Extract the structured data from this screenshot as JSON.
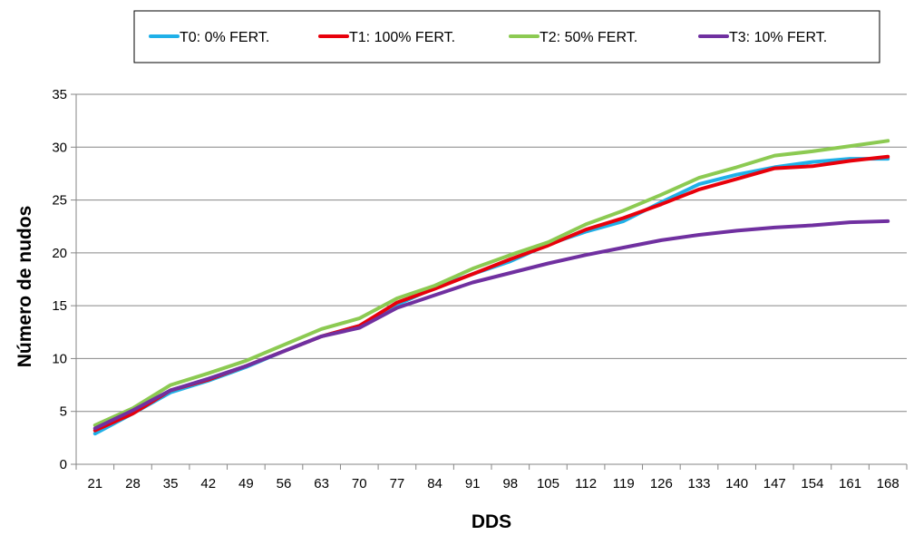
{
  "chart_data": {
    "type": "line",
    "title": "",
    "xlabel": "DDS",
    "ylabel": "Número de nudos",
    "ylim": [
      0,
      35
    ],
    "yticks": [
      0,
      5,
      10,
      15,
      20,
      25,
      30,
      35
    ],
    "grid": "horizontal",
    "legend": "top",
    "x": [
      21,
      28,
      35,
      42,
      49,
      56,
      63,
      70,
      77,
      84,
      91,
      98,
      105,
      112,
      119,
      126,
      133,
      140,
      147,
      154,
      161,
      168
    ],
    "series": [
      {
        "name": "T0: 0% FERT.",
        "color": "#1FB0E8",
        "values": [
          2.9,
          4.8,
          6.8,
          7.9,
          9.2,
          10.7,
          12.1,
          13.1,
          15.1,
          16.7,
          18.0,
          19.2,
          20.8,
          22.0,
          23.0,
          24.8,
          26.5,
          27.4,
          28.1,
          28.6,
          28.9,
          28.9
        ]
      },
      {
        "name": "T1: 100% FERT.",
        "color": "#E8000B",
        "values": [
          3.2,
          4.8,
          7.0,
          8.0,
          9.3,
          10.7,
          12.1,
          13.1,
          15.3,
          16.6,
          18.0,
          19.4,
          20.7,
          22.2,
          23.3,
          24.6,
          26.0,
          27.0,
          28.0,
          28.2,
          28.7,
          29.1
        ]
      },
      {
        "name": "T2: 50% FERT.",
        "color": "#8CCA52",
        "values": [
          3.7,
          5.3,
          7.5,
          8.6,
          9.8,
          11.3,
          12.8,
          13.8,
          15.7,
          16.9,
          18.5,
          19.8,
          21.0,
          22.7,
          24.0,
          25.5,
          27.1,
          28.1,
          29.2,
          29.6,
          30.1,
          30.6
        ]
      },
      {
        "name": "T3: 10% FERT.",
        "color": "#7030A0",
        "values": [
          3.4,
          5.1,
          7.0,
          8.1,
          9.3,
          10.7,
          12.1,
          12.9,
          14.8,
          16.0,
          17.2,
          18.1,
          19.0,
          19.8,
          20.5,
          21.2,
          21.7,
          22.1,
          22.4,
          22.6,
          22.9,
          23.0
        ]
      }
    ]
  }
}
